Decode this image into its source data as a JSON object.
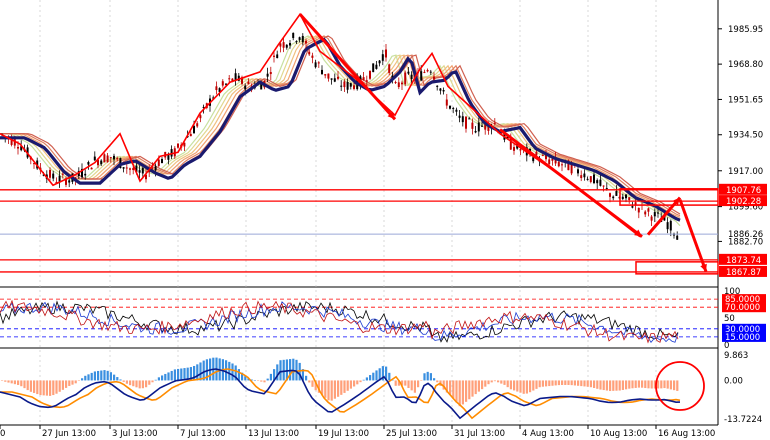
{
  "chart_data": [
    {
      "type": "candlestick",
      "panel": "price",
      "y_ticks": [
        "1985.95",
        "1968.80",
        "1951.65",
        "1934.50",
        "1917.00",
        "1899.60",
        "1882.70"
      ],
      "ylim": [
        1862.5,
        1998
      ],
      "current_price": "1886.26",
      "price_levels": [
        {
          "value": 1907.76,
          "label": "1907.76",
          "color": "#ff0000"
        },
        {
          "value": 1902.28,
          "label": "1902.28",
          "color": "#ff0000"
        },
        {
          "value": 1873.74,
          "label": "1873.74",
          "color": "#ff0000"
        },
        {
          "value": 1867.87,
          "label": "1867.87",
          "color": "#ff0000"
        }
      ],
      "grid": false
    },
    {
      "type": "line",
      "panel": "oscillator",
      "y_ticks": [
        "100",
        "50",
        "0"
      ],
      "levels": [
        {
          "value": 85,
          "label": "85.0000",
          "color": "#ff0000"
        },
        {
          "value": 70,
          "label": "70.0000",
          "color": "#ff0000"
        },
        {
          "value": 30,
          "label": "30.0000",
          "color": "#0000ff"
        },
        {
          "value": 15,
          "label": "15.0000",
          "color": "#0000ff"
        }
      ],
      "ylim": [
        0,
        100
      ]
    },
    {
      "type": "bar",
      "panel": "macd",
      "y_ticks": [
        "9.863",
        "0.00",
        "-13.7224"
      ],
      "ylim": [
        -13.7224,
        9.863
      ]
    }
  ],
  "x_labels": [
    "0",
    "27 Jun 13:00",
    "3 Jul 13:00",
    "7 Jul 13:00",
    "13 Jul 13:00",
    "19 Jul 13:00",
    "25 Jul 13:00",
    "31 Jul 13:00",
    "4 Aug 13:00",
    "10 Aug 13:00",
    "16 Aug 13:00"
  ],
  "colors": {
    "ma_thick": "#1a1a6e",
    "annotation": "#ff0000",
    "bull_candle": "#000000",
    "bear_candle": "#c00000",
    "macd_pos": "#3a8fe0",
    "macd_neg": "#ffa07a",
    "signal": "#ff8c00",
    "macd_line": "#0a1a8a"
  }
}
